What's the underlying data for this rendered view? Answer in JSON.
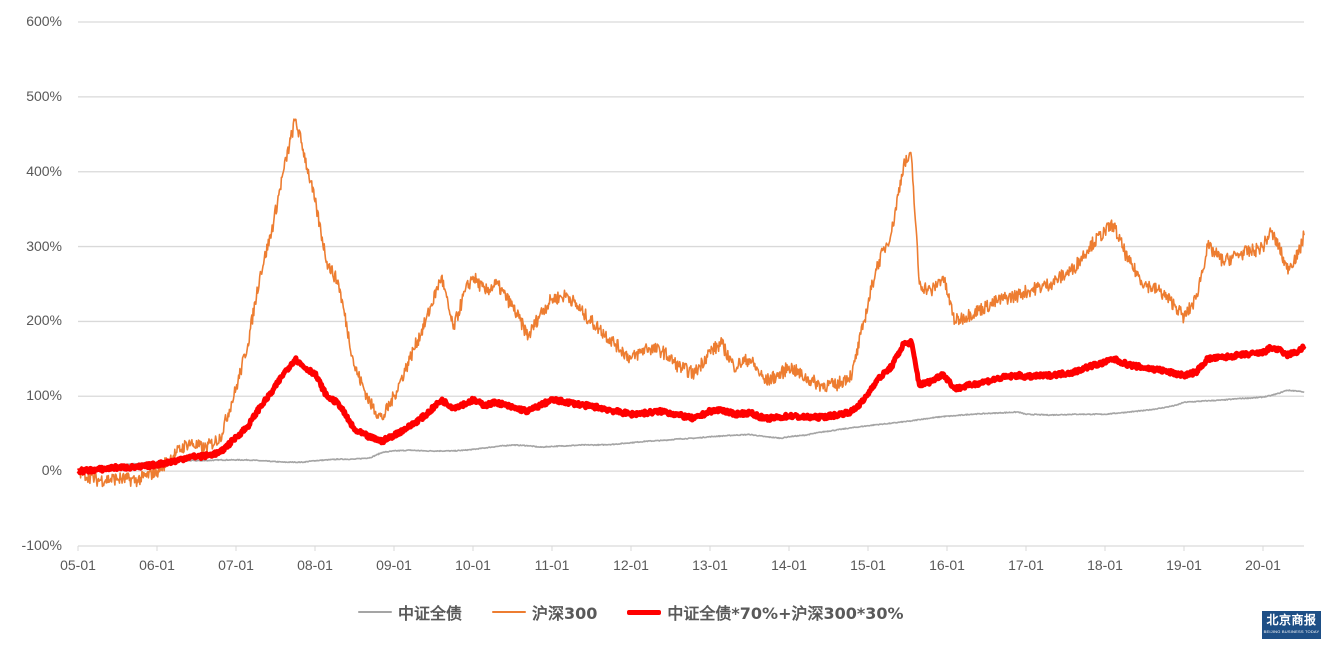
{
  "chart_data": {
    "type": "line",
    "title": "",
    "xlabel": "",
    "ylabel": "",
    "ylim": [
      -100,
      600
    ],
    "yticks": [
      "-100%",
      "0%",
      "100%",
      "200%",
      "300%",
      "400%",
      "500%",
      "600%"
    ],
    "xticks": [
      "05-01",
      "06-01",
      "07-01",
      "08-01",
      "09-01",
      "10-01",
      "11-01",
      "12-01",
      "13-01",
      "14-01",
      "15-01",
      "16-01",
      "17-01",
      "18-01",
      "19-01",
      "20-01"
    ],
    "grid": true,
    "legend_position": "bottom",
    "x": [
      2005.0,
      2005.25,
      2005.5,
      2005.75,
      2006.0,
      2006.25,
      2006.4,
      2006.6,
      2006.8,
      2007.0,
      2007.15,
      2007.3,
      2007.45,
      2007.6,
      2007.75,
      2007.85,
      2008.0,
      2008.15,
      2008.3,
      2008.5,
      2008.7,
      2008.85,
      2009.0,
      2009.2,
      2009.4,
      2009.6,
      2009.75,
      2009.9,
      2010.0,
      2010.15,
      2010.3,
      2010.5,
      2010.7,
      2010.85,
      2011.0,
      2011.2,
      2011.4,
      2011.6,
      2011.8,
      2012.0,
      2012.2,
      2012.4,
      2012.6,
      2012.8,
      2013.0,
      2013.15,
      2013.3,
      2013.5,
      2013.7,
      2013.9,
      2014.0,
      2014.2,
      2014.4,
      2014.6,
      2014.8,
      2014.95,
      2015.1,
      2015.3,
      2015.45,
      2015.55,
      2015.65,
      2015.8,
      2015.95,
      2016.1,
      2016.3,
      2016.5,
      2016.7,
      2016.9,
      2017.0,
      2017.3,
      2017.6,
      2017.8,
      2018.0,
      2018.1,
      2018.3,
      2018.5,
      2018.7,
      2018.9,
      2019.0,
      2019.15,
      2019.3,
      2019.5,
      2019.7,
      2019.9,
      2020.0,
      2020.1,
      2020.2,
      2020.3,
      2020.45,
      2020.52
    ],
    "series": [
      {
        "name": "中证全债",
        "color": "#A5A5A5",
        "values": [
          0,
          4,
          8,
          10,
          12,
          13,
          14,
          14,
          15,
          15,
          15,
          14,
          13,
          12,
          12,
          12,
          14,
          15,
          16,
          16,
          18,
          25,
          27,
          28,
          27,
          27,
          27,
          28,
          29,
          31,
          33,
          35,
          34,
          32,
          33,
          34,
          35,
          35,
          36,
          38,
          40,
          41,
          43,
          44,
          46,
          47,
          48,
          49,
          46,
          44,
          46,
          48,
          52,
          55,
          58,
          60,
          62,
          64,
          66,
          67,
          69,
          71,
          73,
          74,
          76,
          77,
          78,
          79,
          76,
          75,
          76,
          76,
          76,
          77,
          79,
          81,
          84,
          88,
          92,
          93,
          94,
          95,
          97,
          98,
          99,
          101,
          104,
          108,
          107,
          105
        ]
      },
      {
        "name": "沪深300",
        "color": "#ED7D31",
        "values": [
          0,
          -12,
          -10,
          -12,
          0,
          25,
          38,
          30,
          45,
          110,
          170,
          260,
          320,
          400,
          470,
          430,
          360,
          280,
          250,
          140,
          90,
          70,
          100,
          150,
          200,
          260,
          190,
          240,
          260,
          240,
          250,
          220,
          180,
          210,
          230,
          235,
          210,
          190,
          170,
          150,
          165,
          160,
          140,
          130,
          160,
          170,
          140,
          150,
          120,
          130,
          140,
          125,
          115,
          115,
          130,
          200,
          270,
          320,
          410,
          420,
          250,
          240,
          260,
          200,
          210,
          220,
          230,
          235,
          240,
          250,
          270,
          300,
          320,
          330,
          280,
          250,
          240,
          220,
          205,
          230,
          300,
          280,
          290,
          295,
          300,
          320,
          300,
          270,
          290,
          315
        ]
      },
      {
        "name": "中证全债*70%+沪深300*30%",
        "color": "#FF0000",
        "values": [
          0,
          2,
          5,
          5,
          9,
          14,
          19,
          20,
          25,
          45,
          60,
          85,
          105,
          130,
          150,
          140,
          130,
          100,
          90,
          55,
          45,
          40,
          48,
          60,
          75,
          95,
          85,
          90,
          95,
          88,
          92,
          85,
          80,
          88,
          95,
          92,
          88,
          85,
          80,
          76,
          78,
          80,
          75,
          70,
          80,
          82,
          76,
          78,
          70,
          72,
          74,
          72,
          72,
          75,
          80,
          95,
          120,
          140,
          170,
          172,
          115,
          120,
          130,
          110,
          115,
          120,
          125,
          128,
          126,
          128,
          132,
          140,
          145,
          150,
          142,
          138,
          135,
          130,
          128,
          132,
          150,
          152,
          155,
          157,
          158,
          165,
          162,
          155,
          160,
          167
        ]
      }
    ]
  },
  "legend": {
    "items": [
      {
        "label": "中证全债",
        "color": "#A5A5A5"
      },
      {
        "label": "沪深300",
        "color": "#ED7D31"
      },
      {
        "label": "中证全债*70%+沪深300*30%",
        "color": "#FF0000"
      }
    ]
  },
  "watermark": {
    "main": "北京商报",
    "sub": "BEIJING BUSINESS TODAY"
  }
}
